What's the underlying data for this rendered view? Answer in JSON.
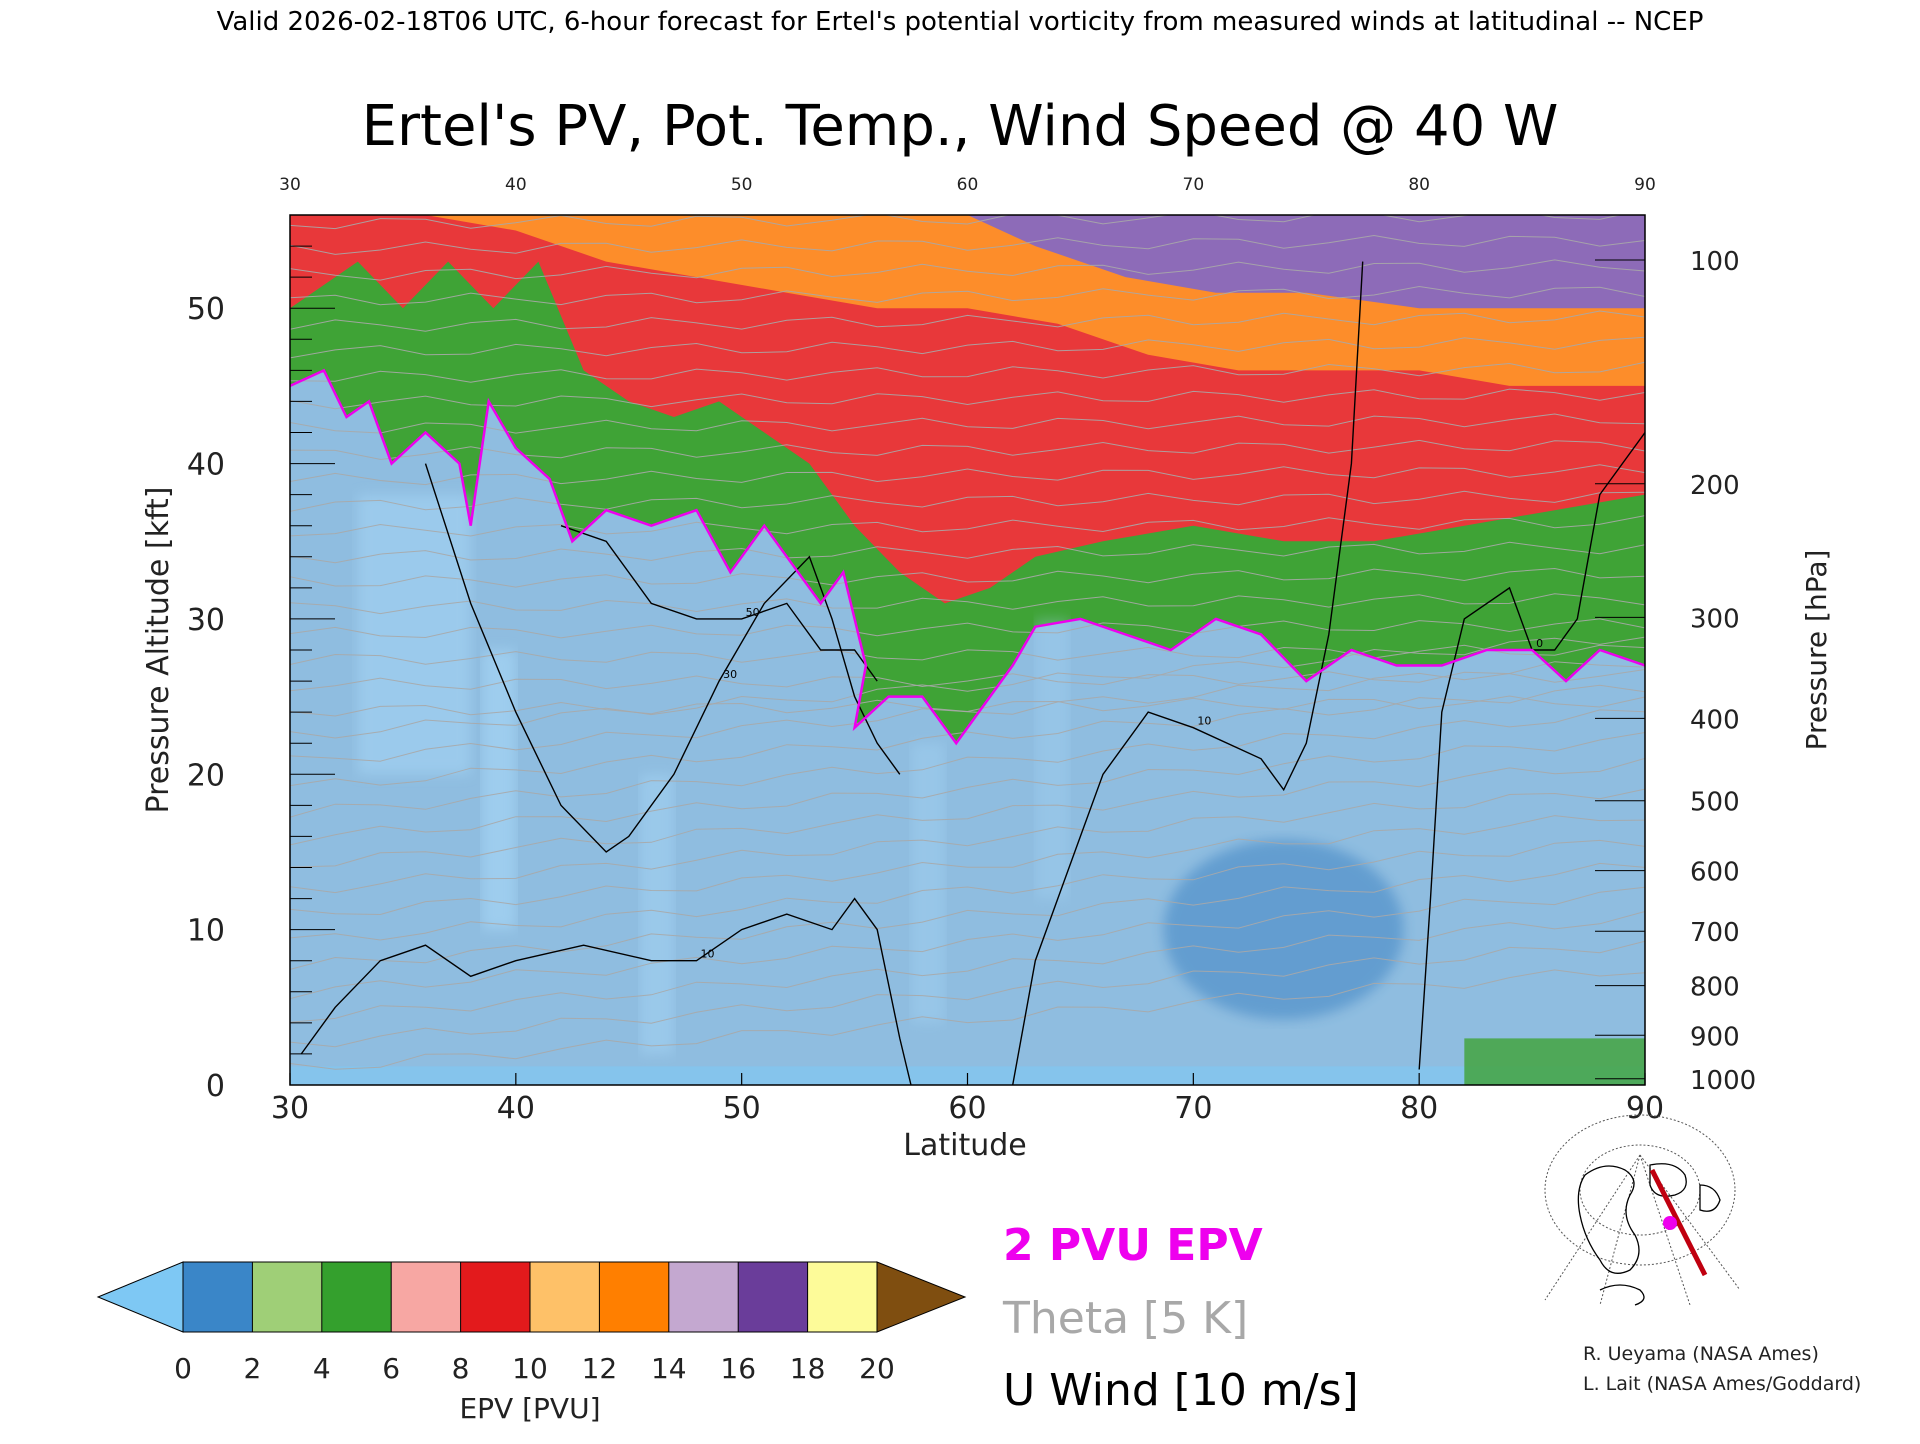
{
  "header": {
    "valid_line": "Valid 2026-02-18T06 UTC, 6-hour forecast for Ertel's potential vorticity from measured winds at latitudinal -- NCEP"
  },
  "chart_data": {
    "type": "heatmap",
    "title": "Ertel's PV, Pot. Temp., Wind Speed @ 40 W",
    "xlabel": "Latitude",
    "ylabel_left": "Pressure Altitude [kft]",
    "ylabel_right": "Pressure [hPa]",
    "xlim": [
      30,
      90
    ],
    "ylim": [
      0,
      56
    ],
    "x_ticks": [
      30,
      40,
      50,
      60,
      70,
      80,
      90
    ],
    "top_x_ticks": [
      30,
      40,
      50,
      60,
      70,
      80,
      90
    ],
    "y_ticks": [
      0,
      10,
      20,
      30,
      40,
      50
    ],
    "pressure_ticks": [
      {
        "hpa": 100,
        "kft": 53.1
      },
      {
        "hpa": 200,
        "kft": 38.7
      },
      {
        "hpa": 300,
        "kft": 30.1
      },
      {
        "hpa": 400,
        "kft": 23.6
      },
      {
        "hpa": 500,
        "kft": 18.3
      },
      {
        "hpa": 600,
        "kft": 13.8
      },
      {
        "hpa": 700,
        "kft": 9.9
      },
      {
        "hpa": 800,
        "kft": 6.4
      },
      {
        "hpa": 900,
        "kft": 3.2
      },
      {
        "hpa": 1000,
        "kft": 0.4
      }
    ],
    "tropopause_2pvu_kft": [
      {
        "lat": 30,
        "kft": 45
      },
      {
        "lat": 31.5,
        "kft": 46
      },
      {
        "lat": 32.5,
        "kft": 43
      },
      {
        "lat": 33.5,
        "kft": 44
      },
      {
        "lat": 34.5,
        "kft": 40
      },
      {
        "lat": 36,
        "kft": 42
      },
      {
        "lat": 37.5,
        "kft": 40
      },
      {
        "lat": 38,
        "kft": 36
      },
      {
        "lat": 38.8,
        "kft": 44
      },
      {
        "lat": 40,
        "kft": 41
      },
      {
        "lat": 41.5,
        "kft": 39
      },
      {
        "lat": 42.5,
        "kft": 35
      },
      {
        "lat": 44,
        "kft": 37
      },
      {
        "lat": 46,
        "kft": 36
      },
      {
        "lat": 48,
        "kft": 37
      },
      {
        "lat": 49.5,
        "kft": 33
      },
      {
        "lat": 51,
        "kft": 36
      },
      {
        "lat": 52.5,
        "kft": 33
      },
      {
        "lat": 53.5,
        "kft": 31
      },
      {
        "lat": 54.5,
        "kft": 33
      },
      {
        "lat": 55.5,
        "kft": 27
      },
      {
        "lat": 55,
        "kft": 23
      },
      {
        "lat": 56.5,
        "kft": 25
      },
      {
        "lat": 58,
        "kft": 25
      },
      {
        "lat": 59.5,
        "kft": 22
      },
      {
        "lat": 60.5,
        "kft": 24
      },
      {
        "lat": 62,
        "kft": 27
      },
      {
        "lat": 63,
        "kft": 29.5
      },
      {
        "lat": 65,
        "kft": 30
      },
      {
        "lat": 67,
        "kft": 29
      },
      {
        "lat": 69,
        "kft": 28
      },
      {
        "lat": 71,
        "kft": 30
      },
      {
        "lat": 73,
        "kft": 29
      },
      {
        "lat": 75,
        "kft": 26
      },
      {
        "lat": 77,
        "kft": 28
      },
      {
        "lat": 79,
        "kft": 27
      },
      {
        "lat": 81,
        "kft": 27
      },
      {
        "lat": 83,
        "kft": 28
      },
      {
        "lat": 85,
        "kft": 28
      },
      {
        "lat": 86.5,
        "kft": 26
      },
      {
        "lat": 88,
        "kft": 28
      },
      {
        "lat": 90,
        "kft": 27
      }
    ],
    "pv_layer_tops_kft": {
      "green_top": [
        {
          "lat": 30,
          "kft": 50
        },
        {
          "lat": 33,
          "kft": 53
        },
        {
          "lat": 35,
          "kft": 50
        },
        {
          "lat": 37,
          "kft": 53
        },
        {
          "lat": 39,
          "kft": 50
        },
        {
          "lat": 41,
          "kft": 53
        },
        {
          "lat": 43,
          "kft": 46
        },
        {
          "lat": 45,
          "kft": 44
        },
        {
          "lat": 47,
          "kft": 43
        },
        {
          "lat": 49,
          "kft": 44
        },
        {
          "lat": 51,
          "kft": 42
        },
        {
          "lat": 53,
          "kft": 40
        },
        {
          "lat": 55,
          "kft": 36
        },
        {
          "lat": 57,
          "kft": 33
        },
        {
          "lat": 59,
          "kft": 31
        },
        {
          "lat": 61,
          "kft": 32
        },
        {
          "lat": 63,
          "kft": 34
        },
        {
          "lat": 66,
          "kft": 35
        },
        {
          "lat": 70,
          "kft": 36
        },
        {
          "lat": 74,
          "kft": 35
        },
        {
          "lat": 78,
          "kft": 35
        },
        {
          "lat": 82,
          "kft": 36
        },
        {
          "lat": 86,
          "kft": 37
        },
        {
          "lat": 90,
          "kft": 38
        }
      ],
      "red_top": [
        {
          "lat": 30,
          "kft": 56
        },
        {
          "lat": 36,
          "kft": 56
        },
        {
          "lat": 40,
          "kft": 55
        },
        {
          "lat": 44,
          "kft": 53
        },
        {
          "lat": 48,
          "kft": 52
        },
        {
          "lat": 52,
          "kft": 51
        },
        {
          "lat": 56,
          "kft": 50
        },
        {
          "lat": 60,
          "kft": 50
        },
        {
          "lat": 64,
          "kft": 49
        },
        {
          "lat": 68,
          "kft": 47
        },
        {
          "lat": 72,
          "kft": 46
        },
        {
          "lat": 76,
          "kft": 46
        },
        {
          "lat": 80,
          "kft": 46
        },
        {
          "lat": 84,
          "kft": 45
        },
        {
          "lat": 90,
          "kft": 45
        }
      ],
      "orange_top": [
        {
          "lat": 30,
          "kft": 56
        },
        {
          "lat": 60,
          "kft": 56
        },
        {
          "lat": 63,
          "kft": 54
        },
        {
          "lat": 67,
          "kft": 52
        },
        {
          "lat": 71,
          "kft": 51
        },
        {
          "lat": 75,
          "kft": 51
        },
        {
          "lat": 80,
          "kft": 50
        },
        {
          "lat": 85,
          "kft": 50
        },
        {
          "lat": 90,
          "kft": 50
        }
      ]
    },
    "u_wind_contours": [
      {
        "label": "10",
        "points": [
          [
            30.5,
            2
          ],
          [
            32,
            5
          ],
          [
            34,
            8
          ],
          [
            36,
            9
          ],
          [
            38,
            7
          ],
          [
            40,
            8
          ],
          [
            43,
            9
          ],
          [
            46,
            8
          ],
          [
            48,
            8
          ],
          [
            50,
            10
          ],
          [
            52,
            11
          ],
          [
            54,
            10
          ],
          [
            55,
            12
          ],
          [
            56,
            10
          ],
          [
            57,
            3
          ],
          [
            57.5,
            0
          ]
        ]
      },
      {
        "label": "30",
        "points": [
          [
            36,
            40
          ],
          [
            38,
            31
          ],
          [
            40,
            24
          ],
          [
            42,
            18
          ],
          [
            44,
            15
          ],
          [
            45,
            16
          ],
          [
            47,
            20
          ],
          [
            49,
            26
          ],
          [
            51,
            31
          ],
          [
            53,
            34
          ],
          [
            54,
            30
          ],
          [
            55,
            25
          ],
          [
            56,
            22
          ],
          [
            57,
            20
          ]
        ]
      },
      {
        "label": "50",
        "points": [
          [
            42,
            36
          ],
          [
            44,
            35
          ],
          [
            46,
            31
          ],
          [
            48,
            30
          ],
          [
            50,
            30
          ],
          [
            52,
            31
          ],
          [
            53.5,
            28
          ],
          [
            55,
            28
          ],
          [
            56,
            26
          ]
        ]
      },
      {
        "label": "10",
        "points": [
          [
            62,
            0
          ],
          [
            62.5,
            4
          ],
          [
            63,
            8
          ],
          [
            64,
            12
          ],
          [
            65,
            16
          ],
          [
            66,
            20
          ],
          [
            68,
            24
          ],
          [
            70,
            23
          ],
          [
            73,
            21
          ],
          [
            74,
            19
          ],
          [
            75,
            22
          ],
          [
            76,
            29
          ],
          [
            77,
            40
          ],
          [
            77.5,
            53
          ]
        ]
      },
      {
        "label": "0",
        "points": [
          [
            80,
            1
          ],
          [
            80.5,
            12
          ],
          [
            81,
            24
          ],
          [
            82,
            30
          ],
          [
            84,
            32
          ],
          [
            85,
            28
          ],
          [
            86,
            28
          ],
          [
            87,
            30
          ],
          [
            88,
            38
          ],
          [
            90,
            42
          ]
        ]
      }
    ],
    "colorbar": {
      "label": "EPV [PVU]",
      "ticks": [
        0,
        2,
        4,
        6,
        8,
        10,
        12,
        14,
        16,
        18,
        20
      ],
      "colors": [
        "#7ec8f4",
        "#3a86c8",
        "#9fcf77",
        "#34a02d",
        "#f7a7a3",
        "#e31a1c",
        "#fec168",
        "#ff7f00",
        "#c4a8d0",
        "#6a3d9a",
        "#fdfb99",
        "#7f4e10"
      ]
    }
  },
  "legend": {
    "pvu": "2 PVU EPV",
    "theta": "Theta [5 K]",
    "wind": "U Wind [10 m/s]"
  },
  "credits": {
    "line1": "R. Ueyama (NASA Ames)",
    "line2": "L. Lait (NASA Ames/Goddard)"
  },
  "inset_map": {
    "description_icon": "north-polar-locator-map-icon",
    "track_color": "#c0000f",
    "marker_color": "#ee00ee"
  },
  "colors": {
    "pvu_contour": "#ee00ee",
    "theta_contour": "#a8a8a8",
    "wind_contour": "#000000"
  }
}
